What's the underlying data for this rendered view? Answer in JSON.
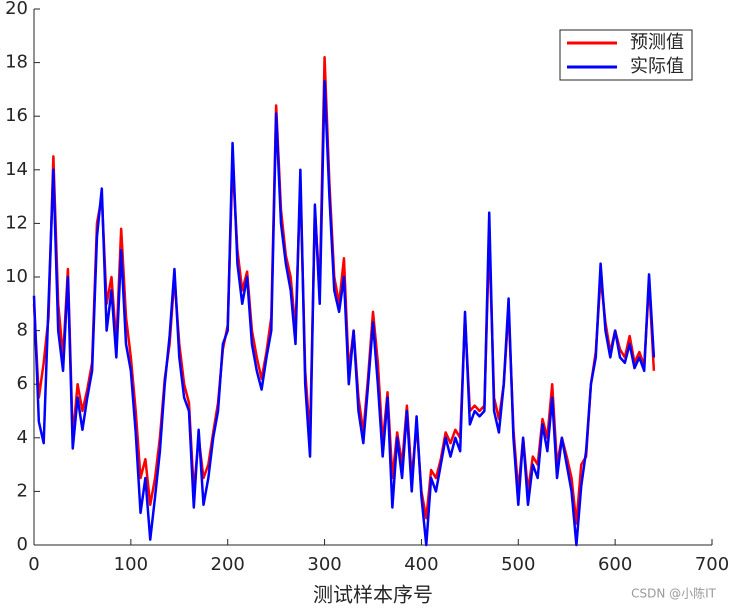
{
  "chart_data": {
    "type": "line",
    "x_label": "测试样本序号",
    "watermark": "CSDN @小陈IT",
    "x": [
      0,
      5,
      10,
      15,
      20,
      25,
      30,
      35,
      40,
      45,
      50,
      55,
      60,
      65,
      70,
      75,
      80,
      85,
      90,
      95,
      100,
      105,
      110,
      115,
      120,
      125,
      130,
      135,
      140,
      145,
      150,
      155,
      160,
      165,
      170,
      175,
      180,
      185,
      190,
      195,
      200,
      205,
      210,
      215,
      220,
      225,
      230,
      235,
      240,
      245,
      250,
      255,
      260,
      265,
      270,
      275,
      280,
      285,
      290,
      295,
      300,
      305,
      310,
      315,
      320,
      325,
      330,
      335,
      340,
      345,
      350,
      355,
      360,
      365,
      370,
      375,
      380,
      385,
      390,
      395,
      400,
      405,
      410,
      415,
      420,
      425,
      430,
      435,
      440,
      445,
      450,
      455,
      460,
      465,
      470,
      475,
      480,
      485,
      490,
      495,
      500,
      505,
      510,
      515,
      520,
      525,
      530,
      535,
      540,
      545,
      550,
      555,
      560,
      565,
      570,
      575,
      580,
      585,
      590,
      595,
      600,
      605,
      610,
      615,
      620,
      625,
      630,
      635,
      640
    ],
    "series": [
      {
        "name": "预测值",
        "color": "#ff0000",
        "values": [
          9.0,
          5.5,
          6.8,
          8.5,
          14.5,
          9.0,
          7.0,
          10.3,
          4.0,
          6.0,
          5.0,
          5.8,
          6.8,
          12.0,
          13.0,
          9.0,
          10.0,
          7.5,
          11.8,
          8.5,
          7.0,
          5.0,
          2.5,
          3.2,
          1.5,
          2.5,
          4.0,
          6.2,
          7.5,
          10.0,
          7.5,
          6.0,
          5.3,
          2.0,
          4.0,
          2.5,
          3.0,
          4.2,
          5.3,
          7.3,
          8.2,
          14.3,
          11.0,
          9.5,
          10.2,
          8.0,
          7.0,
          6.2,
          7.2,
          8.5,
          16.4,
          12.5,
          10.8,
          10.0,
          8.0,
          13.5,
          6.5,
          4.0,
          12.5,
          9.5,
          18.2,
          13.5,
          10.0,
          9.0,
          10.7,
          6.5,
          8.0,
          5.5,
          4.2,
          6.3,
          8.7,
          6.8,
          3.8,
          5.7,
          2.5,
          4.2,
          3.0,
          5.2,
          2.5,
          4.5,
          2.0,
          1.0,
          2.8,
          2.5,
          3.2,
          4.2,
          3.8,
          4.3,
          4.0,
          8.5,
          5.0,
          5.2,
          5.0,
          5.2,
          11.5,
          5.5,
          4.7,
          6.0,
          8.8,
          4.3,
          2.0,
          4.0,
          2.0,
          3.3,
          3.0,
          4.7,
          4.0,
          6.0,
          3.0,
          4.0,
          3.3,
          2.5,
          0.8,
          3.0,
          3.3,
          6.0,
          7.2,
          10.0,
          8.3,
          7.2,
          8.0,
          7.3,
          7.0,
          7.8,
          6.8,
          7.2,
          6.7,
          9.8,
          6.5
        ]
      },
      {
        "name": "实际值",
        "color": "#0000ff",
        "values": [
          9.3,
          4.6,
          3.8,
          9.0,
          14.0,
          8.0,
          6.5,
          10.0,
          3.6,
          5.5,
          4.3,
          5.5,
          6.5,
          11.5,
          13.3,
          8.0,
          9.5,
          7.0,
          11.0,
          7.5,
          6.5,
          4.2,
          1.2,
          2.5,
          0.2,
          1.8,
          3.5,
          6.0,
          7.8,
          10.3,
          7.0,
          5.5,
          5.0,
          1.4,
          4.3,
          1.5,
          2.5,
          4.0,
          5.0,
          7.5,
          8.0,
          15.0,
          10.5,
          9.0,
          10.0,
          7.5,
          6.5,
          5.8,
          7.0,
          8.0,
          16.1,
          12.0,
          10.5,
          9.5,
          7.5,
          14.0,
          6.0,
          3.3,
          12.7,
          9.0,
          17.3,
          13.0,
          9.5,
          8.7,
          10.0,
          6.0,
          8.0,
          5.0,
          3.8,
          6.0,
          8.3,
          6.0,
          3.3,
          5.5,
          1.4,
          4.0,
          2.5,
          5.0,
          2.0,
          4.8,
          1.8,
          0.0,
          2.5,
          2.0,
          3.0,
          4.0,
          3.3,
          4.0,
          3.5,
          8.7,
          4.5,
          5.0,
          4.8,
          5.0,
          12.4,
          5.0,
          4.2,
          6.0,
          9.2,
          4.0,
          1.5,
          4.0,
          1.5,
          3.0,
          2.5,
          4.5,
          3.5,
          5.5,
          2.5,
          4.0,
          3.0,
          2.0,
          0.0,
          2.2,
          3.5,
          6.0,
          7.0,
          10.5,
          8.0,
          7.0,
          8.0,
          7.0,
          6.8,
          7.5,
          6.6,
          7.0,
          6.5,
          10.1,
          7.0
        ]
      }
    ],
    "xlim": [
      0,
      700
    ],
    "xticks": [
      0,
      100,
      200,
      300,
      400,
      500,
      600,
      700
    ],
    "ylim": [
      0,
      20
    ],
    "yticks": [
      0,
      2,
      4,
      6,
      8,
      10,
      12,
      14,
      16,
      18,
      20
    ],
    "legend": "upper-right"
  }
}
